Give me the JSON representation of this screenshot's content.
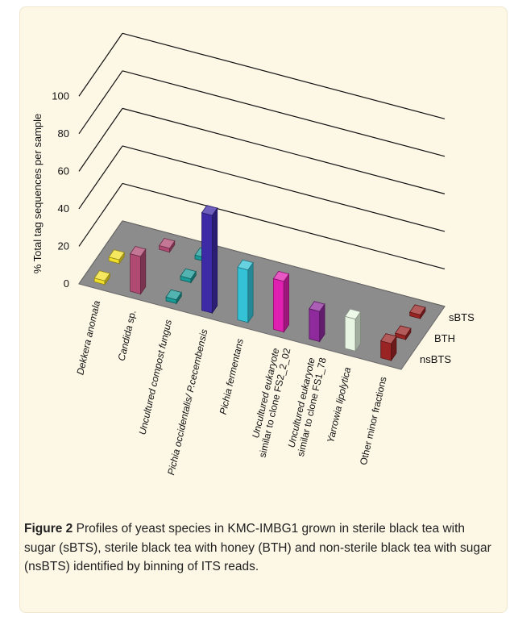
{
  "chart_data": {
    "type": "bar",
    "ylabel": "% Total tag sequences per sample",
    "yticks": [
      "0",
      "20",
      "40",
      "60",
      "80",
      "100"
    ],
    "ylim": [
      0,
      110
    ],
    "categories": [
      {
        "parts": [
          {
            "t": "Dekkera anomala",
            "i": true
          }
        ]
      },
      {
        "parts": [
          {
            "t": "Candida",
            "i": true
          },
          {
            "t": " sp.",
            "i": false
          }
        ]
      },
      {
        "parts": [
          {
            "t": "Uncultured compost fungus",
            "i": true
          }
        ]
      },
      {
        "parts": [
          {
            "t": "Pichia occidentalis/ P.cecembensis",
            "i": true
          }
        ]
      },
      {
        "parts": [
          {
            "t": "Pichia fermentans",
            "i": true
          }
        ]
      },
      {
        "parts": [
          {
            "t": "Uncultured eukaryote",
            "i": true
          }
        ],
        "line2": "similar to clone FS2_2_02"
      },
      {
        "parts": [
          {
            "t": "Uncultured eukaryote",
            "i": true
          }
        ],
        "line2": "similar to clone FS1_78"
      },
      {
        "parts": [
          {
            "t": "Yarrowia lipolytica",
            "i": true
          }
        ]
      },
      {
        "parts": [
          {
            "t": "Other minor fractions",
            "i": false
          }
        ]
      }
    ],
    "series": [
      {
        "name": "sBTS",
        "values": [
          0,
          2,
          2,
          0,
          0,
          0,
          0,
          0,
          2
        ]
      },
      {
        "name": "BTH",
        "values": [
          2,
          0,
          2,
          0,
          0,
          0,
          0,
          0,
          2
        ]
      },
      {
        "name": "nsBTS",
        "values": [
          2,
          20,
          2,
          52,
          28,
          27,
          16,
          17,
          9
        ]
      }
    ],
    "bar_colors": [
      "#f2df2a",
      "#b04a72",
      "#1a9a96",
      "#3d2aa6",
      "#34c2d6",
      "#e020b0",
      "#8e2a9c",
      "#e8f5e2",
      "#9a2424"
    ]
  },
  "caption": {
    "label": "Figure 2",
    "text": "  Profiles of yeast species in KMC-IMBG1 grown in sterile black tea with sugar (sBTS), sterile black tea with honey (BTH) and non-sterile black tea with sugar (nsBTS) identified by binning of ITS reads."
  }
}
